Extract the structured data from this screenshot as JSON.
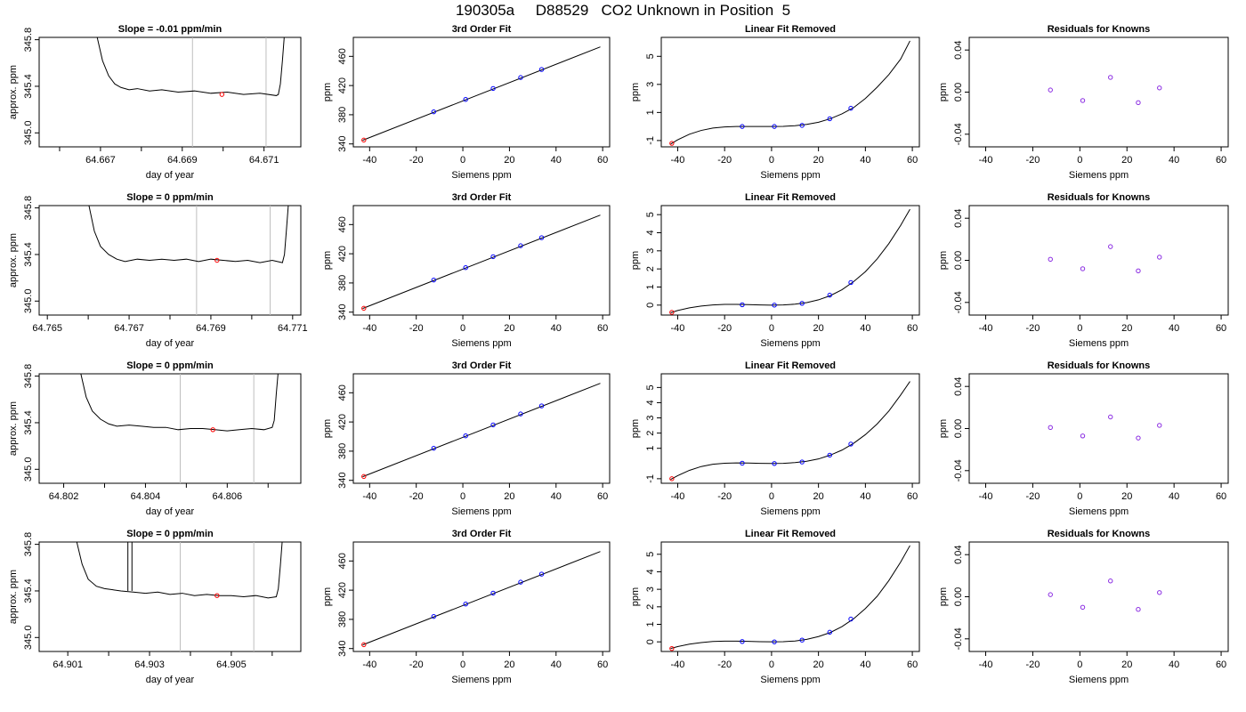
{
  "figure": {
    "title": "190305a     D88529   CO2 Unknown in Position  5"
  },
  "colors": {
    "axis": "#000000",
    "curve": "#000000",
    "known_points": "#0000ff",
    "unknown_point": "#ff0000",
    "residual_points": "#8a2be2",
    "window_lines": "#bebebe"
  },
  "panel_titles": {
    "fit": "3rd Order Fit",
    "linear_removed": "Linear Fit Removed",
    "residuals": "Residuals for Knowns"
  },
  "axis_labels": {
    "trace_x": "day of year",
    "trace_y": "approx. ppm",
    "siemens_x": "Siemens ppm",
    "ppm_y": "ppm"
  },
  "chart_data": [
    {
      "row": 1,
      "trace": {
        "type": "line",
        "title": "Slope =  -0.01  ppm/min",
        "xlim": [
          64.6655,
          64.6719
        ],
        "ylim": [
          344.88,
          345.82
        ],
        "xticks": [
          "64.667",
          "64.669",
          "64.671"
        ],
        "yticks": [
          "345.0",
          "345.4",
          "345.8"
        ],
        "window": [
          64.66925,
          64.67105
        ],
        "marker": {
          "x": 64.66997,
          "y": 345.33
        },
        "spikes": [],
        "series": {
          "x": [
            64.6669,
            64.66705,
            64.6672,
            64.66735,
            64.6675,
            64.6677,
            64.6679,
            64.6682,
            64.6685,
            64.6689,
            64.6693,
            64.6697,
            64.6701,
            64.6705,
            64.6709,
            64.6713,
            64.67135,
            64.6714,
            64.67145,
            64.6715
          ],
          "y": [
            345.85,
            345.62,
            345.49,
            345.42,
            345.39,
            345.37,
            345.38,
            345.36,
            345.37,
            345.35,
            345.36,
            345.34,
            345.35,
            345.33,
            345.34,
            345.32,
            345.33,
            345.42,
            345.62,
            345.85
          ]
        }
      },
      "fit": {
        "type": "line",
        "xlim": [
          -47,
          63
        ],
        "ylim": [
          336,
          486
        ],
        "xticks": [
          -40,
          -20,
          0,
          20,
          40,
          60
        ],
        "yticks": [
          340,
          380,
          420,
          460
        ],
        "line_x": [
          -43,
          59
        ],
        "line_y": [
          345,
          473
        ],
        "known_x": [
          -12.5,
          1.2,
          13,
          24.8,
          33.8
        ],
        "known_y": [
          384,
          401,
          416,
          431,
          442
        ],
        "unknown": {
          "x": -42.5,
          "y": 345.3
        }
      },
      "linear_removed": {
        "type": "line",
        "xlim": [
          -47,
          63
        ],
        "ylim": [
          -1.45,
          6.35
        ],
        "xticks": [
          -40,
          -20,
          0,
          20,
          40,
          60
        ],
        "yticks": [
          -1,
          1,
          3,
          5
        ],
        "curve_x": [
          -43,
          -40,
          -35,
          -30,
          -25,
          -20,
          -15,
          -10,
          -5,
          0,
          5,
          10,
          15,
          20,
          25,
          30,
          35,
          40,
          45,
          50,
          55,
          59
        ],
        "curve_y": [
          -1.25,
          -0.95,
          -0.55,
          -0.28,
          -0.11,
          -0.03,
          0,
          0,
          0,
          0,
          0.01,
          0.06,
          0.15,
          0.3,
          0.55,
          0.9,
          1.35,
          2.0,
          2.8,
          3.7,
          4.8,
          6.1
        ],
        "known_x": [
          -12.5,
          1.2,
          13,
          24.8,
          33.8
        ],
        "known_y": [
          0,
          0,
          0.08,
          0.55,
          1.3
        ],
        "unknown": {
          "x": -42.5,
          "y": -1.2
        }
      },
      "residuals": {
        "type": "scatter",
        "xlim": [
          -47,
          63
        ],
        "ylim": [
          -0.052,
          0.052
        ],
        "xticks": [
          -40,
          -20,
          0,
          20,
          40,
          60
        ],
        "yticks": [
          "-0.04",
          "0.00",
          "0.04"
        ],
        "x": [
          -12.5,
          1.2,
          13,
          24.8,
          33.8
        ],
        "y": [
          0.002,
          -0.008,
          0.014,
          -0.01,
          0.004
        ]
      }
    },
    {
      "row": 2,
      "trace": {
        "type": "line",
        "title": "Slope =  0  ppm/min",
        "xlim": [
          64.7648,
          64.7712
        ],
        "ylim": [
          344.88,
          345.82
        ],
        "xticks": [
          "64.765",
          "64.767",
          "64.769",
          "64.771"
        ],
        "yticks": [
          "345.0",
          "345.4",
          "345.8"
        ],
        "window": [
          64.76865,
          64.77045
        ],
        "marker": {
          "x": 64.76915,
          "y": 345.35
        },
        "spikes": [],
        "series": {
          "x": [
            64.766,
            64.76615,
            64.7663,
            64.7665,
            64.7667,
            64.7669,
            64.7672,
            64.7675,
            64.7678,
            64.7681,
            64.7684,
            64.7687,
            64.769,
            64.7693,
            64.7696,
            64.7699,
            64.7702,
            64.7705,
            64.77075,
            64.7708,
            64.77085,
            64.7709
          ],
          "y": [
            345.85,
            345.6,
            345.47,
            345.4,
            345.36,
            345.34,
            345.36,
            345.35,
            345.36,
            345.35,
            345.36,
            345.34,
            345.36,
            345.35,
            345.34,
            345.35,
            345.33,
            345.35,
            345.33,
            345.4,
            345.62,
            345.85
          ]
        }
      },
      "fit": {
        "type": "line",
        "xlim": [
          -47,
          63
        ],
        "ylim": [
          336,
          486
        ],
        "xticks": [
          -40,
          -20,
          0,
          20,
          40,
          60
        ],
        "yticks": [
          340,
          380,
          420,
          460
        ],
        "line_x": [
          -43,
          59
        ],
        "line_y": [
          345,
          473
        ],
        "known_x": [
          -12.5,
          1.2,
          13,
          24.8,
          33.8
        ],
        "known_y": [
          384,
          401,
          416,
          431,
          442
        ],
        "unknown": {
          "x": -42.5,
          "y": 345.3
        }
      },
      "linear_removed": {
        "type": "line",
        "xlim": [
          -47,
          63
        ],
        "ylim": [
          -0.55,
          5.5
        ],
        "xticks": [
          -40,
          -20,
          0,
          20,
          40,
          60
        ],
        "yticks": [
          0,
          1,
          2,
          3,
          4,
          5
        ],
        "curve_x": [
          -43,
          -40,
          -35,
          -30,
          -25,
          -20,
          -15,
          -10,
          -5,
          0,
          5,
          10,
          15,
          20,
          25,
          30,
          35,
          40,
          45,
          50,
          55,
          59
        ],
        "curve_y": [
          -0.42,
          -0.3,
          -0.15,
          -0.05,
          0.01,
          0.04,
          0.04,
          0.03,
          0.01,
          0,
          0.01,
          0.05,
          0.14,
          0.29,
          0.52,
          0.85,
          1.3,
          1.85,
          2.55,
          3.4,
          4.4,
          5.3
        ],
        "known_x": [
          -12.5,
          1.2,
          13,
          24.8,
          33.8
        ],
        "known_y": [
          0.02,
          0,
          0.1,
          0.55,
          1.25
        ],
        "unknown": {
          "x": -42.5,
          "y": -0.4
        }
      },
      "residuals": {
        "type": "scatter",
        "xlim": [
          -47,
          63
        ],
        "ylim": [
          -0.052,
          0.052
        ],
        "xticks": [
          -40,
          -20,
          0,
          20,
          40,
          60
        ],
        "yticks": [
          "-0.04",
          "0.00",
          "0.04"
        ],
        "x": [
          -12.5,
          1.2,
          13,
          24.8,
          33.8
        ],
        "y": [
          0.001,
          -0.008,
          0.013,
          -0.01,
          0.003
        ]
      }
    },
    {
      "row": 3,
      "trace": {
        "type": "line",
        "title": "Slope =  0  ppm/min",
        "xlim": [
          64.8014,
          64.8078
        ],
        "ylim": [
          344.88,
          345.82
        ],
        "xticks": [
          "64.802",
          "64.804",
          "64.806"
        ],
        "yticks": [
          "345.0",
          "345.4",
          "345.8"
        ],
        "window": [
          64.80485,
          64.80665
        ],
        "marker": {
          "x": 64.80565,
          "y": 345.34
        },
        "spikes": [],
        "series": {
          "x": [
            64.8024,
            64.80255,
            64.8027,
            64.8029,
            64.8031,
            64.8033,
            64.8036,
            64.8039,
            64.8042,
            64.8045,
            64.8048,
            64.8051,
            64.8054,
            64.8057,
            64.806,
            64.8063,
            64.8066,
            64.8069,
            64.8071,
            64.80715,
            64.8072,
            64.80725
          ],
          "y": [
            345.85,
            345.62,
            345.5,
            345.43,
            345.39,
            345.37,
            345.38,
            345.37,
            345.36,
            345.36,
            345.34,
            345.35,
            345.35,
            345.34,
            345.33,
            345.34,
            345.35,
            345.34,
            345.36,
            345.42,
            345.65,
            345.85
          ]
        }
      },
      "fit": {
        "type": "line",
        "xlim": [
          -47,
          63
        ],
        "ylim": [
          336,
          486
        ],
        "xticks": [
          -40,
          -20,
          0,
          20,
          40,
          60
        ],
        "yticks": [
          340,
          380,
          420,
          460
        ],
        "line_x": [
          -43,
          59
        ],
        "line_y": [
          345,
          473
        ],
        "known_x": [
          -12.5,
          1.2,
          13,
          24.8,
          33.8
        ],
        "known_y": [
          384,
          401,
          416,
          431,
          442
        ],
        "unknown": {
          "x": -42.5,
          "y": 345.3
        }
      },
      "linear_removed": {
        "type": "line",
        "xlim": [
          -47,
          63
        ],
        "ylim": [
          -1.3,
          5.9
        ],
        "xticks": [
          -40,
          -20,
          0,
          20,
          40,
          60
        ],
        "yticks": [
          -1,
          1,
          2,
          3,
          4,
          5
        ],
        "curve_x": [
          -43,
          -40,
          -35,
          -30,
          -25,
          -20,
          -15,
          -10,
          -5,
          0,
          5,
          10,
          15,
          20,
          25,
          30,
          35,
          40,
          45,
          50,
          55,
          59
        ],
        "curve_y": [
          -1.05,
          -0.8,
          -0.45,
          -0.2,
          -0.05,
          0.02,
          0.04,
          0.03,
          0.01,
          0,
          0.01,
          0.06,
          0.15,
          0.3,
          0.55,
          0.88,
          1.33,
          1.9,
          2.6,
          3.45,
          4.5,
          5.4
        ],
        "known_x": [
          -12.5,
          1.2,
          13,
          24.8,
          33.8
        ],
        "known_y": [
          0.02,
          0,
          0.1,
          0.55,
          1.28
        ],
        "unknown": {
          "x": -42.5,
          "y": -1.0
        }
      },
      "residuals": {
        "type": "scatter",
        "xlim": [
          -47,
          63
        ],
        "ylim": [
          -0.052,
          0.052
        ],
        "xticks": [
          -40,
          -20,
          0,
          20,
          40,
          60
        ],
        "yticks": [
          "-0.04",
          "0.00",
          "0.04"
        ],
        "x": [
          -12.5,
          1.2,
          13,
          24.8,
          33.8
        ],
        "y": [
          0.001,
          -0.007,
          0.011,
          -0.009,
          0.003
        ]
      }
    },
    {
      "row": 4,
      "trace": {
        "type": "line",
        "title": "Slope =  0  ppm/min",
        "xlim": [
          64.9003,
          64.9067
        ],
        "ylim": [
          344.88,
          345.82
        ],
        "xticks": [
          "64.901",
          "64.903",
          "64.905"
        ],
        "yticks": [
          "345.0",
          "345.4",
          "345.8"
        ],
        "window": [
          64.90375,
          64.90555
        ],
        "marker": {
          "x": 64.90465,
          "y": 345.36
        },
        "spikes": [
          64.90247,
          64.90257
        ],
        "series": {
          "x": [
            64.9012,
            64.90135,
            64.9015,
            64.9017,
            64.9019,
            64.9021,
            64.9023,
            64.9026,
            64.9029,
            64.9032,
            64.9035,
            64.9038,
            64.9041,
            64.9044,
            64.9047,
            64.905,
            64.9053,
            64.9056,
            64.9059,
            64.9061,
            64.90615,
            64.9062,
            64.90625
          ],
          "y": [
            345.85,
            345.63,
            345.5,
            345.44,
            345.42,
            345.41,
            345.4,
            345.39,
            345.38,
            345.39,
            345.37,
            345.38,
            345.36,
            345.37,
            345.36,
            345.36,
            345.35,
            345.36,
            345.34,
            345.35,
            345.42,
            345.62,
            345.85
          ]
        }
      },
      "fit": {
        "type": "line",
        "xlim": [
          -47,
          63
        ],
        "ylim": [
          336,
          486
        ],
        "xticks": [
          -40,
          -20,
          0,
          20,
          40,
          60
        ],
        "yticks": [
          340,
          380,
          420,
          460
        ],
        "line_x": [
          -43,
          59
        ],
        "line_y": [
          345,
          473
        ],
        "known_x": [
          -12.5,
          1.2,
          13,
          24.8,
          33.8
        ],
        "known_y": [
          384,
          401,
          416,
          431,
          442
        ],
        "unknown": {
          "x": -42.5,
          "y": 345.3
        }
      },
      "linear_removed": {
        "type": "line",
        "xlim": [
          -47,
          63
        ],
        "ylim": [
          -0.55,
          5.7
        ],
        "xticks": [
          -40,
          -20,
          0,
          20,
          40,
          60
        ],
        "yticks": [
          0,
          1,
          2,
          3,
          4,
          5
        ],
        "curve_x": [
          -43,
          -40,
          -35,
          -30,
          -25,
          -20,
          -15,
          -10,
          -5,
          0,
          5,
          10,
          15,
          20,
          25,
          30,
          35,
          40,
          45,
          50,
          55,
          59
        ],
        "curve_y": [
          -0.38,
          -0.27,
          -0.13,
          -0.04,
          0.02,
          0.04,
          0.04,
          0.03,
          0.01,
          0,
          0.01,
          0.05,
          0.14,
          0.3,
          0.53,
          0.87,
          1.32,
          1.9,
          2.6,
          3.5,
          4.55,
          5.5
        ],
        "known_x": [
          -12.5,
          1.2,
          13,
          24.8,
          33.8
        ],
        "known_y": [
          0.02,
          0,
          0.1,
          0.55,
          1.3
        ],
        "unknown": {
          "x": -42.5,
          "y": -0.38
        }
      },
      "residuals": {
        "type": "scatter",
        "xlim": [
          -47,
          63
        ],
        "ylim": [
          -0.052,
          0.052
        ],
        "xticks": [
          -40,
          -20,
          0,
          20,
          40,
          60
        ],
        "yticks": [
          "-0.04",
          "0.00",
          "0.04"
        ],
        "x": [
          -12.5,
          1.2,
          13,
          24.8,
          33.8
        ],
        "y": [
          0.002,
          -0.01,
          0.015,
          -0.012,
          0.004
        ]
      }
    }
  ]
}
